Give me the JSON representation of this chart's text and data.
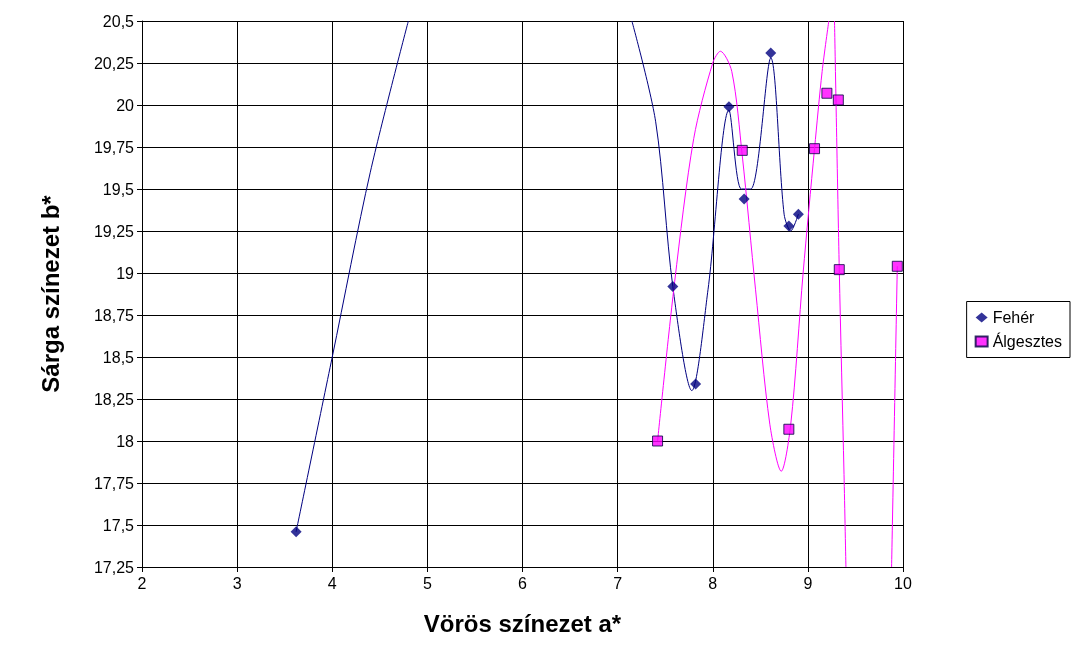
{
  "chart_data": {
    "type": "scatter",
    "xlabel": "Vörös színezet a*",
    "ylabel": "Sárga színezet b*",
    "xlim": [
      2,
      10
    ],
    "xticks": [
      2,
      3,
      4,
      5,
      6,
      7,
      8,
      9,
      10
    ],
    "ylim": [
      17.25,
      20.5
    ],
    "yticks": [
      {
        "value": 17.25,
        "label": "17,25"
      },
      {
        "value": 17.5,
        "label": "17,5"
      },
      {
        "value": 17.75,
        "label": "17,75"
      },
      {
        "value": 18,
        "label": "18"
      },
      {
        "value": 18.25,
        "label": "18,25"
      },
      {
        "value": 18.5,
        "label": "18,5"
      },
      {
        "value": 18.75,
        "label": "18,75"
      },
      {
        "value": 19,
        "label": "19"
      },
      {
        "value": 19.25,
        "label": "19,25"
      },
      {
        "value": 19.5,
        "label": "19,5"
      },
      {
        "value": 19.75,
        "label": "19,75"
      },
      {
        "value": 20,
        "label": "20"
      },
      {
        "value": 20.25,
        "label": "20,25"
      },
      {
        "value": 20.5,
        "label": "20,5"
      }
    ],
    "grid": true,
    "legend": "right",
    "series": [
      {
        "name": "Fehér",
        "marker": "diamond",
        "color": "#000080",
        "x": [
          3.62,
          7.58,
          7.82,
          8.17,
          8.33,
          8.61,
          8.8,
          8.9
        ],
        "values": [
          17.46,
          18.92,
          18.34,
          19.99,
          19.44,
          20.31,
          19.28,
          19.35
        ]
      },
      {
        "name": "Álgesztes",
        "marker": "square",
        "color": "#ff00ff",
        "x": [
          7.42,
          8.31,
          8.8,
          9.07,
          9.2,
          9.32,
          9.33,
          9.94
        ],
        "values": [
          18.0,
          19.73,
          18.07,
          19.74,
          20.07,
          20.03,
          19.02,
          19.04
        ]
      },
      {
        "type": "line",
        "marker": "none",
        "color": "#000080",
        "x": [
          3.62,
          4.0,
          4.4,
          4.8,
          null,
          7.15,
          7.4,
          7.58,
          7.78,
          7.95,
          8.17,
          8.3,
          8.4,
          8.61,
          8.75,
          8.82,
          8.9
        ],
        "values": [
          17.46,
          18.5,
          19.6,
          20.5,
          null,
          20.5,
          19.9,
          18.92,
          18.3,
          18.9,
          19.97,
          19.5,
          19.5,
          20.28,
          19.35,
          19.25,
          19.35
        ]
      },
      {
        "type": "line",
        "marker": "none",
        "color": "#ff00ff",
        "x": [
          7.42,
          7.6,
          7.8,
          8.0,
          8.08,
          8.2,
          8.31,
          8.45,
          8.6,
          8.72,
          8.82,
          8.95,
          9.07,
          9.15,
          9.22,
          null,
          9.28,
          9.33,
          9.38,
          9.4,
          null,
          9.88,
          9.94
        ],
        "values": [
          18.0,
          18.95,
          19.8,
          20.25,
          20.32,
          20.2,
          19.7,
          18.9,
          18.1,
          17.82,
          18.1,
          19.0,
          19.74,
          20.2,
          20.5,
          null,
          20.5,
          19.02,
          17.8,
          17.25,
          null,
          17.25,
          19.04
        ]
      }
    ]
  }
}
